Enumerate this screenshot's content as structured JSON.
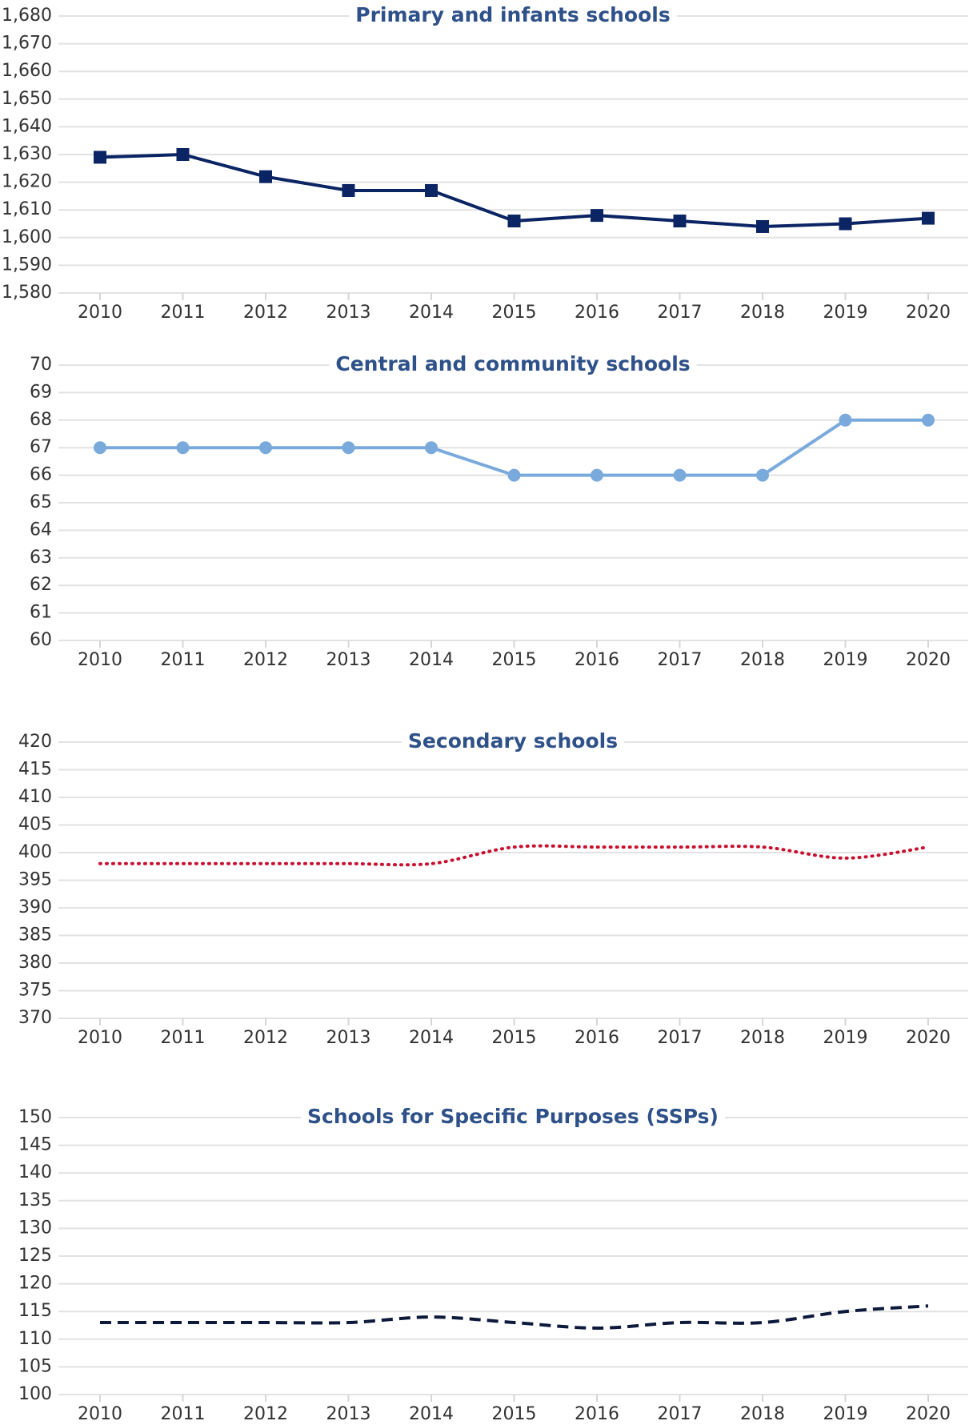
{
  "chart_data": [
    {
      "type": "line",
      "title": "Primary and infants schools",
      "categories": [
        "2010",
        "2011",
        "2012",
        "2013",
        "2014",
        "2015",
        "2016",
        "2017",
        "2018",
        "2019",
        "2020"
      ],
      "series": [
        {
          "color": "#0b2463",
          "values": [
            1629,
            1630,
            1622,
            1617,
            1617,
            1606,
            1608,
            1606,
            1604,
            1605,
            1607
          ]
        }
      ],
      "marker": "square",
      "line_style": "solid",
      "smooth": false,
      "ylim": [
        1580,
        1680
      ],
      "yticks": [
        {
          "value": 1580,
          "label": "1,580"
        },
        {
          "value": 1590,
          "label": "1,590"
        },
        {
          "value": 1600,
          "label": "1,600"
        },
        {
          "value": 1610,
          "label": "1,610"
        },
        {
          "value": 1620,
          "label": "1,620"
        },
        {
          "value": 1630,
          "label": "1,630"
        },
        {
          "value": 1640,
          "label": "1,640"
        },
        {
          "value": 1650,
          "label": "1,650"
        },
        {
          "value": 1660,
          "label": "1,660"
        },
        {
          "value": 1670,
          "label": "1,670"
        },
        {
          "value": 1680,
          "label": "1,680"
        }
      ],
      "grid": true
    },
    {
      "type": "line",
      "title": "Central and community schools",
      "categories": [
        "2010",
        "2011",
        "2012",
        "2013",
        "2014",
        "2015",
        "2016",
        "2017",
        "2018",
        "2019",
        "2020"
      ],
      "series": [
        {
          "color": "#7aaadc",
          "values": [
            67,
            67,
            67,
            67,
            67,
            66,
            66,
            66,
            66,
            68,
            68
          ]
        }
      ],
      "marker": "circle",
      "line_style": "solid",
      "smooth": false,
      "ylim": [
        60,
        70
      ],
      "yticks": [
        60,
        61,
        62,
        63,
        64,
        65,
        66,
        67,
        68,
        69,
        70
      ],
      "grid": true
    },
    {
      "type": "line",
      "title": "Secondary schools",
      "categories": [
        "2010",
        "2011",
        "2012",
        "2013",
        "2014",
        "2015",
        "2016",
        "2017",
        "2018",
        "2019",
        "2020"
      ],
      "series": [
        {
          "color": "#c8102e",
          "values": [
            398,
            398,
            398,
            398,
            398,
            401,
            401,
            401,
            401,
            399,
            401
          ]
        }
      ],
      "marker": "none",
      "line_style": "dotted",
      "smooth": true,
      "ylim": [
        370,
        420
      ],
      "yticks": [
        370,
        375,
        380,
        385,
        390,
        395,
        400,
        405,
        410,
        415,
        420
      ],
      "grid": true
    },
    {
      "type": "line",
      "title": "Schools for Specific Purposes (SSPs)",
      "categories": [
        "2010",
        "2011",
        "2012",
        "2013",
        "2014",
        "2015",
        "2016",
        "2017",
        "2018",
        "2019",
        "2020"
      ],
      "series": [
        {
          "color": "#0e1a3c",
          "values": [
            113,
            113,
            113,
            113,
            114,
            113,
            112,
            113,
            113,
            115,
            116
          ]
        }
      ],
      "marker": "none",
      "line_style": "dashed",
      "smooth": true,
      "ylim": [
        100,
        150
      ],
      "yticks": [
        100,
        105,
        110,
        115,
        120,
        125,
        130,
        135,
        140,
        145,
        150
      ],
      "grid": true
    }
  ]
}
